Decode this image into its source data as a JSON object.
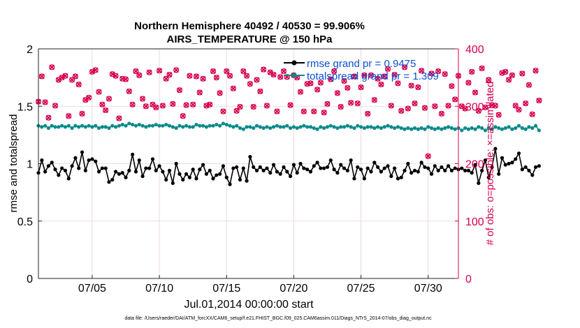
{
  "colors": {
    "rmse": "#000000",
    "spread": "#0a8a8a",
    "obs_possible": "#d6004f",
    "obs_assimilated": "#d6004f",
    "right_axis": "#d6004f",
    "legend_text": "#0b4fd0",
    "grid": "#e6d2d2"
  },
  "chart_data": {
    "type": "line",
    "title_line1": "Northern Hemisphere 40492 / 40530 = 99.906%",
    "title_line2": "AIRS_TEMPERATURE @ 150 hPa",
    "xlabel": "Jul.01,2014 00:00:00 start",
    "ylabel_left": "rmse and totalspread",
    "ylabel_right": "# of obs: o=possible; ×=assimilated",
    "footnote": "data file: /Users/raeder/DAI/ATM_forcXX/CAM6_setup/f.e21.FHIST_BGC.f09_025.CAM6assim.011/Diags_NTrS_2014-07/obs_diag_output.nc",
    "xlim": [
      1,
      32.25
    ],
    "ylim_left": [
      0,
      2
    ],
    "ylim_right": [
      0,
      400
    ],
    "x_ticks": [
      5,
      10,
      15,
      20,
      25,
      30
    ],
    "x_tick_labels": [
      "07/05",
      "07/10",
      "07/15",
      "07/20",
      "07/25",
      "07/30"
    ],
    "y_ticks_left": [
      0,
      0.5,
      1,
      1.5,
      2
    ],
    "y_tick_labels_left": [
      "0",
      "0.5",
      "1",
      "1.5",
      "2"
    ],
    "y_ticks_right": [
      0,
      100,
      200,
      300,
      400
    ],
    "y_tick_labels_right": [
      "0",
      "100",
      "200",
      "300",
      "400"
    ],
    "legend": [
      "rmse grand pr = 0.9475",
      "totalspread grand pr = 1.309"
    ],
    "x_start": 1.0,
    "x_step": 0.25,
    "series": [
      {
        "name": "rmse",
        "axis": "left",
        "values": [
          0.92,
          1.03,
          0.93,
          0.98,
          1.01,
          0.95,
          0.9,
          0.96,
          0.94,
          0.87,
          0.98,
          1.05,
          0.96,
          1.1,
          0.94,
          1.03,
          1.04,
          1.02,
          0.93,
          0.96,
          0.96,
          0.84,
          0.86,
          0.93,
          0.91,
          0.92,
          0.88,
          0.94,
          1.08,
          0.93,
          1.03,
          0.89,
          0.96,
          0.96,
          1.04,
          0.94,
          0.98,
          0.93,
          0.86,
          0.94,
          0.83,
          1.0,
          0.91,
          0.86,
          0.91,
          0.88,
          0.95,
          0.87,
          0.95,
          0.99,
          0.91,
          0.94,
          0.87,
          0.9,
          0.91,
          0.98,
          0.88,
          0.82,
          0.96,
          0.97,
          0.86,
          0.96,
          0.85,
          1.06,
          0.97,
          0.94,
          0.97,
          0.94,
          0.96,
          0.92,
          0.99,
          0.93,
          0.91,
          0.97,
          0.93,
          0.89,
          0.99,
          0.92,
          1.0,
          0.96,
          0.95,
          0.93,
          0.98,
          1.01,
          0.96,
          0.96,
          0.97,
          1.03,
          0.95,
          0.92,
          0.99,
          0.96,
          0.94,
          1.03,
          0.87,
          0.97,
          0.95,
          0.87,
          0.96,
          0.93,
          1.01,
          0.97,
          0.93,
          0.96,
          0.98,
          0.89,
          0.96,
          0.87,
          0.88,
          0.94,
          1.0,
          0.92,
          0.94,
          0.93,
          1.01,
          0.97,
          0.96,
          0.91,
          0.98,
          0.94,
          0.97,
          0.94,
          0.98,
          0.94,
          0.96,
          0.95,
          0.96,
          0.94,
          0.94,
          0.92,
          0.99,
          0.83,
          0.94,
          1.03,
          0.88,
          0.97,
          1.13,
          0.91,
          1.05,
          0.99,
          1.0,
          1.01,
          1.04,
          1.09,
          0.95,
          0.97,
          0.94,
          0.9,
          0.97,
          0.98
        ]
      },
      {
        "name": "totalspread",
        "axis": "left",
        "values": [
          1.33,
          1.32,
          1.33,
          1.31,
          1.33,
          1.32,
          1.32,
          1.33,
          1.32,
          1.33,
          1.31,
          1.33,
          1.32,
          1.33,
          1.32,
          1.33,
          1.32,
          1.33,
          1.31,
          1.32,
          1.32,
          1.31,
          1.33,
          1.32,
          1.33,
          1.34,
          1.33,
          1.35,
          1.34,
          1.33,
          1.34,
          1.33,
          1.32,
          1.33,
          1.33,
          1.34,
          1.33,
          1.33,
          1.34,
          1.33,
          1.32,
          1.31,
          1.33,
          1.32,
          1.33,
          1.32,
          1.32,
          1.34,
          1.33,
          1.33,
          1.32,
          1.33,
          1.33,
          1.34,
          1.33,
          1.35,
          1.34,
          1.33,
          1.32,
          1.33,
          1.31,
          1.3,
          1.32,
          1.32,
          1.31,
          1.33,
          1.32,
          1.31,
          1.32,
          1.31,
          1.32,
          1.33,
          1.32,
          1.32,
          1.33,
          1.31,
          1.32,
          1.31,
          1.32,
          1.33,
          1.32,
          1.32,
          1.31,
          1.3,
          1.32,
          1.31,
          1.32,
          1.33,
          1.32,
          1.31,
          1.32,
          1.32,
          1.33,
          1.32,
          1.31,
          1.33,
          1.32,
          1.31,
          1.32,
          1.32,
          1.31,
          1.32,
          1.31,
          1.32,
          1.33,
          1.32,
          1.31,
          1.32,
          1.31,
          1.3,
          1.31,
          1.3,
          1.31,
          1.3,
          1.31,
          1.3,
          1.32,
          1.31,
          1.3,
          1.31,
          1.3,
          1.31,
          1.32,
          1.31,
          1.3,
          1.31,
          1.29,
          1.31,
          1.3,
          1.31,
          1.3,
          1.32,
          1.31,
          1.29,
          1.31,
          1.3,
          1.32,
          1.31,
          1.3,
          1.31,
          1.32,
          1.3,
          1.31,
          1.33,
          1.31,
          1.3,
          1.32,
          1.31,
          1.33,
          1.29
        ]
      },
      {
        "name": "obs_possible",
        "axis": "right",
        "marker": "o",
        "values": [
          308,
          352,
          307,
          280,
          368,
          301,
          346,
          350,
          353,
          283,
          346,
          352,
          338,
          287,
          311,
          315,
          360,
          363,
          325,
          303,
          293,
          313,
          356,
          353,
          279,
          348,
          347,
          326,
          303,
          361,
          354,
          313,
          300,
          359,
          303,
          298,
          362,
          301,
          348,
          355,
          304,
          363,
          328,
          283,
          302,
          353,
          303,
          352,
          324,
          348,
          301,
          303,
          361,
          350,
          323,
          291,
          361,
          353,
          331,
          292,
          299,
          361,
          353,
          339,
          299,
          346,
          326,
          364,
          301,
          359,
          355,
          291,
          351,
          361,
          351,
          302,
          354,
          350,
          325,
          291,
          339,
          340,
          291,
          329,
          341,
          289,
          304,
          347,
          361,
          323,
          299,
          344,
          332,
          306,
          352,
          305,
          333,
          354,
          287,
          354,
          311,
          348,
          338,
          352,
          365,
          301,
          355,
          340,
          292,
          368,
          296,
          336,
          305,
          333,
          362,
          297,
          213,
          357,
          300,
          361,
          287,
          356,
          301,
          335,
          312,
          353,
          300,
          296,
          341,
          360,
          324,
          292,
          366,
          298,
          346,
          302,
          301,
          285,
          358,
          360,
          346,
          354,
          301,
          294,
          357,
          305,
          337,
          286,
          362,
          310
        ]
      },
      {
        "name": "obs_assimilated",
        "axis": "right",
        "marker": "x",
        "values": [
          308,
          352,
          307,
          280,
          368,
          301,
          346,
          350,
          353,
          283,
          346,
          352,
          338,
          287,
          311,
          315,
          360,
          363,
          325,
          303,
          293,
          313,
          356,
          353,
          279,
          348,
          347,
          326,
          303,
          361,
          354,
          313,
          300,
          359,
          303,
          298,
          362,
          301,
          348,
          355,
          304,
          363,
          328,
          283,
          302,
          353,
          303,
          352,
          324,
          348,
          301,
          303,
          361,
          350,
          323,
          291,
          361,
          353,
          331,
          292,
          299,
          361,
          353,
          339,
          299,
          346,
          326,
          364,
          301,
          359,
          355,
          291,
          351,
          361,
          351,
          302,
          354,
          350,
          325,
          291,
          339,
          340,
          291,
          329,
          341,
          289,
          304,
          347,
          361,
          323,
          299,
          344,
          332,
          306,
          352,
          305,
          333,
          354,
          287,
          354,
          311,
          348,
          338,
          352,
          365,
          301,
          355,
          340,
          292,
          368,
          296,
          336,
          305,
          333,
          362,
          297,
          213,
          357,
          300,
          361,
          287,
          356,
          301,
          335,
          312,
          353,
          300,
          296,
          341,
          360,
          324,
          292,
          366,
          298,
          346,
          302,
          301,
          285,
          358,
          360,
          346,
          354,
          301,
          294,
          357,
          305,
          337,
          286,
          362,
          310
        ]
      }
    ]
  }
}
